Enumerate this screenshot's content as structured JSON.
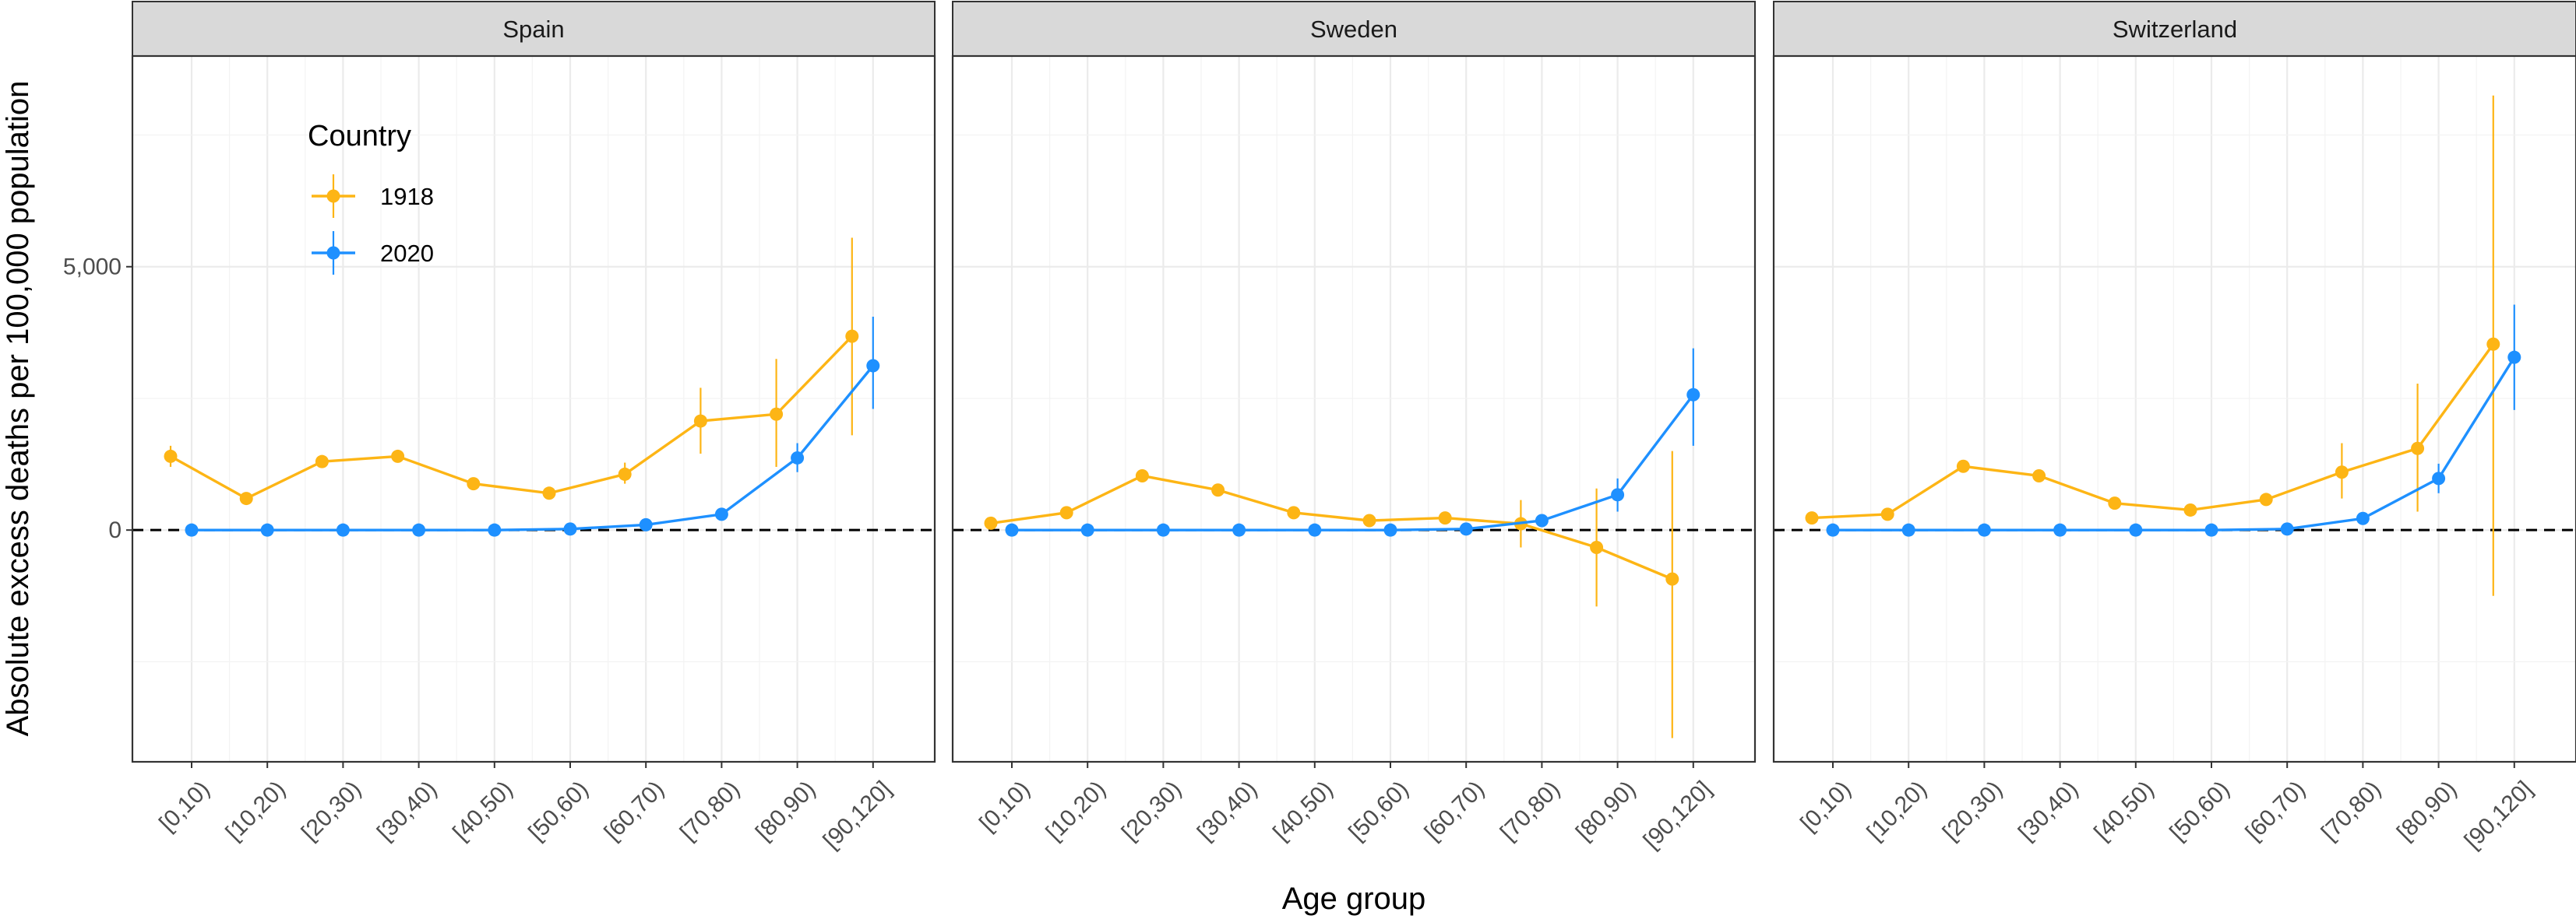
{
  "chart_data": {
    "type": "line",
    "facets": [
      "Spain",
      "Sweden",
      "Switzerland"
    ],
    "categories": [
      "[0,10)",
      "[10,20)",
      "[20,30)",
      "[30,40)",
      "[40,50)",
      "[50,60)",
      "[60,70)",
      "[70,80)",
      "[80,90)",
      "[90,120]"
    ],
    "xlabel": "Age group",
    "ylabel": "Absolute excess deaths per 100,000 population",
    "ylim": [
      -4400,
      9000
    ],
    "yticks": [
      0,
      5000
    ],
    "ytick_labels": [
      "0",
      "5,000"
    ],
    "reference_line": {
      "y": 0,
      "style": "dashed"
    },
    "grid": true,
    "legend": {
      "title": "Country",
      "position": "inside-top-left",
      "entries": [
        "1918",
        "2020"
      ]
    },
    "series": [
      {
        "name": "1918",
        "color": "#FDB515",
        "panels": {
          "Spain": {
            "values": [
              1400,
              600,
              1300,
              1400,
              880,
              700,
              1060,
              2070,
              2200,
              3680
            ],
            "lower": [
              1200,
              520,
              1200,
              1300,
              820,
              640,
              880,
              1450,
              1200,
              1800
            ],
            "upper": [
              1600,
              680,
              1400,
              1500,
              940,
              760,
              1280,
              2700,
              3250,
              5550
            ]
          },
          "Sweden": {
            "values": [
              130,
              330,
              1030,
              760,
              330,
              180,
              230,
              120,
              -330,
              -930
            ],
            "lower": [
              80,
              260,
              950,
              690,
              270,
              120,
              150,
              -330,
              -1450,
              -3950
            ],
            "upper": [
              180,
              400,
              1110,
              830,
              390,
              240,
              310,
              570,
              790,
              1500
            ]
          },
          "Switzerland": {
            "values": [
              230,
              300,
              1210,
              1030,
              510,
              380,
              580,
              1100,
              1550,
              3530
            ],
            "lower": [
              170,
              240,
              1120,
              950,
              450,
              320,
              480,
              600,
              350,
              -1250
            ],
            "upper": [
              290,
              360,
              1300,
              1110,
              570,
              440,
              700,
              1650,
              2780,
              8250
            ]
          }
        }
      },
      {
        "name": "2020",
        "color": "#1E90FF",
        "panels": {
          "Spain": {
            "values": [
              0,
              0,
              0,
              0,
              0,
              20,
              100,
              300,
              1370,
              3120
            ],
            "lower": [
              -10,
              -10,
              -10,
              -10,
              -10,
              0,
              60,
              230,
              1100,
              2300
            ],
            "upper": [
              10,
              10,
              10,
              10,
              10,
              40,
              140,
              370,
              1650,
              4050
            ]
          },
          "Sweden": {
            "values": [
              0,
              0,
              0,
              0,
              0,
              0,
              20,
              180,
              670,
              2570
            ],
            "lower": [
              -10,
              -10,
              -10,
              -10,
              -10,
              -10,
              0,
              80,
              350,
              1600
            ],
            "upper": [
              10,
              10,
              10,
              10,
              10,
              10,
              40,
              280,
              980,
              3450
            ]
          },
          "Switzerland": {
            "values": [
              0,
              0,
              0,
              0,
              0,
              0,
              20,
              220,
              980,
              3280
            ],
            "lower": [
              -10,
              -10,
              -10,
              -10,
              -10,
              -10,
              0,
              150,
              700,
              2280
            ],
            "upper": [
              10,
              10,
              10,
              10,
              10,
              10,
              40,
              290,
              1260,
              4280
            ]
          }
        }
      }
    ]
  }
}
